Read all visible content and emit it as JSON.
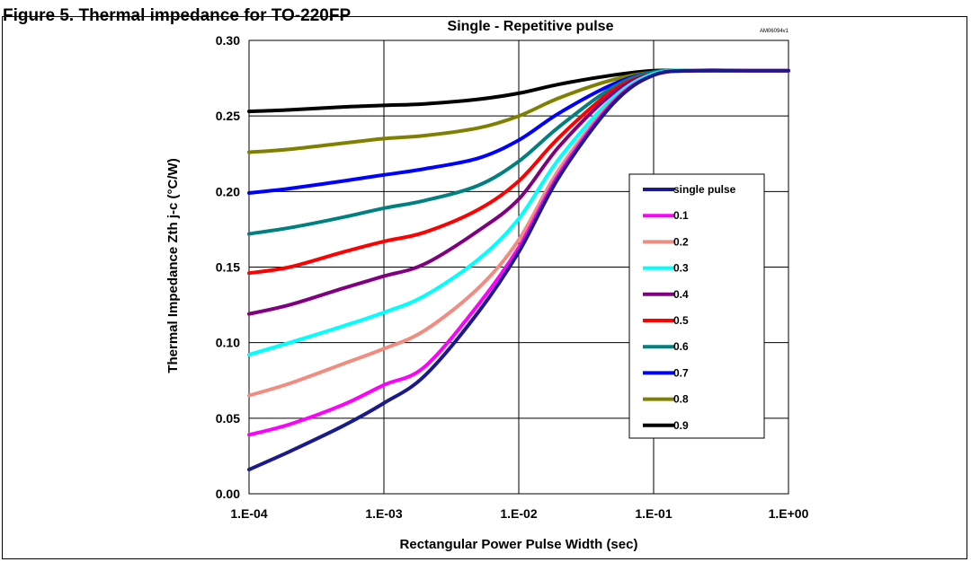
{
  "figure": {
    "caption": "Figure 5. Thermal impedance for TO-220FP"
  },
  "chart_data": {
    "type": "line",
    "title": "Single - Repetitive pulse",
    "doc_code": "AM06094v1",
    "xlabel": "Rectangular Power Pulse Width (sec)",
    "ylabel": "Thermal Impedance Zth j-c (°C/W)",
    "x_scale": "log",
    "xlim": [
      0.0001,
      1
    ],
    "ylim": [
      0,
      0.3
    ],
    "grid": true,
    "legend_position": "right",
    "x_ticks": [
      {
        "value": 0.0001,
        "label": "1.E-04"
      },
      {
        "value": 0.001,
        "label": "1.E-03"
      },
      {
        "value": 0.01,
        "label": "1.E-02"
      },
      {
        "value": 0.1,
        "label": "1.E-01"
      },
      {
        "value": 1,
        "label": "1.E+00"
      }
    ],
    "y_ticks": [
      {
        "value": 0,
        "label": "0.00"
      },
      {
        "value": 0.05,
        "label": "0.05"
      },
      {
        "value": 0.1,
        "label": "0.10"
      },
      {
        "value": 0.15,
        "label": "0.15"
      },
      {
        "value": 0.2,
        "label": "0.20"
      },
      {
        "value": 0.25,
        "label": "0.25"
      },
      {
        "value": 0.3,
        "label": "0.30"
      }
    ],
    "x": [
      0.0001,
      0.0002,
      0.0005,
      0.001,
      0.002,
      0.005,
      0.01,
      0.02,
      0.05,
      0.1,
      0.2,
      0.5,
      1
    ],
    "series": [
      {
        "name": "single pulse",
        "color": "#1a1a8c",
        "values": [
          0.016,
          0.028,
          0.045,
          0.06,
          0.078,
          0.12,
          0.16,
          0.21,
          0.258,
          0.277,
          0.28,
          0.28,
          0.28
        ]
      },
      {
        "name": "0.1",
        "color": "#ff00ff",
        "values": [
          0.039,
          0.046,
          0.059,
          0.072,
          0.084,
          0.125,
          0.163,
          0.212,
          0.259,
          0.277,
          0.28,
          0.28,
          0.28
        ]
      },
      {
        "name": "0.2",
        "color": "#f28c80",
        "values": [
          0.065,
          0.073,
          0.086,
          0.096,
          0.108,
          0.136,
          0.168,
          0.215,
          0.26,
          0.277,
          0.28,
          0.28,
          0.28
        ]
      },
      {
        "name": "0.3",
        "color": "#00ffff",
        "values": [
          0.092,
          0.1,
          0.111,
          0.12,
          0.131,
          0.155,
          0.182,
          0.222,
          0.262,
          0.278,
          0.28,
          0.28,
          0.28
        ]
      },
      {
        "name": "0.4",
        "color": "#800080",
        "values": [
          0.119,
          0.125,
          0.136,
          0.144,
          0.152,
          0.174,
          0.195,
          0.23,
          0.265,
          0.278,
          0.28,
          0.28,
          0.28
        ]
      },
      {
        "name": "0.5",
        "color": "#ff0000",
        "values": [
          0.146,
          0.15,
          0.16,
          0.167,
          0.173,
          0.188,
          0.207,
          0.236,
          0.267,
          0.278,
          0.28,
          0.28,
          0.28
        ]
      },
      {
        "name": "0.6",
        "color": "#008080",
        "values": [
          0.172,
          0.176,
          0.183,
          0.189,
          0.194,
          0.204,
          0.22,
          0.243,
          0.269,
          0.279,
          0.28,
          0.28,
          0.28
        ]
      },
      {
        "name": "0.7",
        "color": "#0000ff",
        "values": [
          0.199,
          0.202,
          0.207,
          0.211,
          0.215,
          0.222,
          0.234,
          0.252,
          0.271,
          0.279,
          0.28,
          0.28,
          0.28
        ]
      },
      {
        "name": "0.8",
        "color": "#808000",
        "values": [
          0.226,
          0.228,
          0.232,
          0.235,
          0.237,
          0.242,
          0.25,
          0.262,
          0.274,
          0.279,
          0.28,
          0.28,
          0.28
        ]
      },
      {
        "name": "0.9",
        "color": "#000000",
        "values": [
          0.253,
          0.254,
          0.256,
          0.257,
          0.258,
          0.261,
          0.265,
          0.271,
          0.277,
          0.28,
          0.28,
          0.28,
          0.28
        ]
      }
    ]
  }
}
